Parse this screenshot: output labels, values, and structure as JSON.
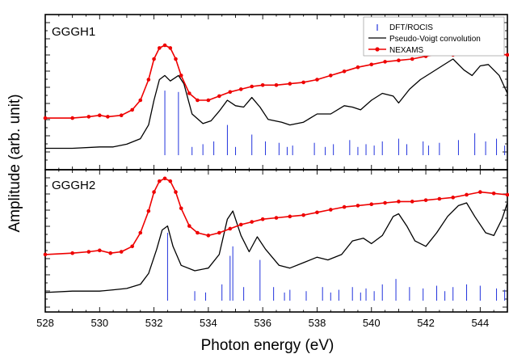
{
  "chart_data": {
    "type": "line",
    "xlabel": "Photon energy (eV)",
    "ylabel": "Amplitude (arb. unit)",
    "xlim": [
      528,
      545
    ],
    "x_ticks": [
      528,
      530,
      532,
      534,
      536,
      538,
      540,
      542,
      544
    ],
    "x_tick_labels": [
      "528",
      "530",
      "532",
      "534",
      "536",
      "538",
      "540",
      "542",
      "544"
    ],
    "legend": {
      "placement": "top-right",
      "entries": [
        "DFT/ROCIS",
        "Pseudo-Voigt convolution",
        "NEXAMS"
      ]
    },
    "colors": {
      "dft": "#2233dd",
      "convolution": "#000000",
      "nexams": "#ee0000"
    },
    "panels": [
      {
        "label": "GGGH1",
        "nexams": [
          [
            528.0,
            0.27
          ],
          [
            529.0,
            0.27
          ],
          [
            529.6,
            0.28
          ],
          [
            530.0,
            0.29
          ],
          [
            530.3,
            0.28
          ],
          [
            530.8,
            0.29
          ],
          [
            531.2,
            0.33
          ],
          [
            531.5,
            0.4
          ],
          [
            531.8,
            0.55
          ],
          [
            532.0,
            0.7
          ],
          [
            532.2,
            0.78
          ],
          [
            532.4,
            0.8
          ],
          [
            532.6,
            0.78
          ],
          [
            532.8,
            0.7
          ],
          [
            533.0,
            0.58
          ],
          [
            533.3,
            0.45
          ],
          [
            533.6,
            0.4
          ],
          [
            534.0,
            0.4
          ],
          [
            534.4,
            0.43
          ],
          [
            534.8,
            0.46
          ],
          [
            535.2,
            0.48
          ],
          [
            535.6,
            0.5
          ],
          [
            536.0,
            0.51
          ],
          [
            536.5,
            0.51
          ],
          [
            537.0,
            0.52
          ],
          [
            537.5,
            0.53
          ],
          [
            538.0,
            0.55
          ],
          [
            538.5,
            0.58
          ],
          [
            539.0,
            0.61
          ],
          [
            539.5,
            0.64
          ],
          [
            540.0,
            0.66
          ],
          [
            540.5,
            0.68
          ],
          [
            541.0,
            0.69
          ],
          [
            541.5,
            0.7
          ],
          [
            542.0,
            0.72
          ],
          [
            542.5,
            0.74
          ],
          [
            543.0,
            0.73
          ],
          [
            543.5,
            0.74
          ],
          [
            544.0,
            0.75
          ],
          [
            544.5,
            0.74
          ],
          [
            545.0,
            0.73
          ]
        ],
        "convolution": [
          [
            528.0,
            0.05
          ],
          [
            529.0,
            0.05
          ],
          [
            530.0,
            0.06
          ],
          [
            530.5,
            0.06
          ],
          [
            531.0,
            0.08
          ],
          [
            531.5,
            0.12
          ],
          [
            531.8,
            0.22
          ],
          [
            532.0,
            0.4
          ],
          [
            532.2,
            0.55
          ],
          [
            532.4,
            0.58
          ],
          [
            532.6,
            0.54
          ],
          [
            532.9,
            0.58
          ],
          [
            533.1,
            0.52
          ],
          [
            533.4,
            0.3
          ],
          [
            533.8,
            0.23
          ],
          [
            534.1,
            0.25
          ],
          [
            534.4,
            0.32
          ],
          [
            534.7,
            0.4
          ],
          [
            535.0,
            0.36
          ],
          [
            535.3,
            0.35
          ],
          [
            535.6,
            0.42
          ],
          [
            535.9,
            0.35
          ],
          [
            536.2,
            0.26
          ],
          [
            536.7,
            0.24
          ],
          [
            537.0,
            0.22
          ],
          [
            537.5,
            0.24
          ],
          [
            538.0,
            0.3
          ],
          [
            538.5,
            0.3
          ],
          [
            539.0,
            0.36
          ],
          [
            539.3,
            0.35
          ],
          [
            539.6,
            0.33
          ],
          [
            540.0,
            0.4
          ],
          [
            540.4,
            0.45
          ],
          [
            540.8,
            0.43
          ],
          [
            541.0,
            0.38
          ],
          [
            541.4,
            0.48
          ],
          [
            541.8,
            0.55
          ],
          [
            542.2,
            0.6
          ],
          [
            542.6,
            0.65
          ],
          [
            543.0,
            0.7
          ],
          [
            543.4,
            0.62
          ],
          [
            543.7,
            0.58
          ],
          [
            544.0,
            0.65
          ],
          [
            544.3,
            0.66
          ],
          [
            544.7,
            0.58
          ],
          [
            545.0,
            0.45
          ]
        ],
        "dft": [
          [
            532.4,
            0.47
          ],
          [
            532.9,
            0.46
          ],
          [
            534.7,
            0.22
          ],
          [
            535.6,
            0.15
          ],
          [
            536.1,
            0.1
          ],
          [
            533.8,
            0.08
          ],
          [
            534.2,
            0.1
          ],
          [
            536.6,
            0.09
          ],
          [
            537.1,
            0.07
          ],
          [
            537.9,
            0.09
          ],
          [
            538.6,
            0.08
          ],
          [
            539.2,
            0.11
          ],
          [
            539.8,
            0.08
          ],
          [
            540.4,
            0.1
          ],
          [
            541.0,
            0.12
          ],
          [
            541.3,
            0.08
          ],
          [
            541.9,
            0.1
          ],
          [
            542.5,
            0.09
          ],
          [
            543.2,
            0.11
          ],
          [
            543.8,
            0.16
          ],
          [
            544.2,
            0.1
          ],
          [
            544.6,
            0.12
          ],
          [
            533.4,
            0.06
          ],
          [
            536.9,
            0.06
          ],
          [
            538.3,
            0.06
          ],
          [
            540.1,
            0.07
          ],
          [
            542.1,
            0.07
          ],
          [
            544.9,
            0.07
          ],
          [
            535.0,
            0.06
          ],
          [
            539.5,
            0.06
          ]
        ]
      },
      {
        "label": "GGGH2",
        "nexams": [
          [
            528.0,
            0.34
          ],
          [
            529.0,
            0.35
          ],
          [
            529.6,
            0.36
          ],
          [
            530.0,
            0.37
          ],
          [
            530.4,
            0.35
          ],
          [
            530.8,
            0.36
          ],
          [
            531.2,
            0.4
          ],
          [
            531.5,
            0.5
          ],
          [
            531.8,
            0.66
          ],
          [
            532.0,
            0.8
          ],
          [
            532.2,
            0.88
          ],
          [
            532.4,
            0.9
          ],
          [
            532.6,
            0.88
          ],
          [
            532.8,
            0.8
          ],
          [
            533.0,
            0.68
          ],
          [
            533.3,
            0.55
          ],
          [
            533.6,
            0.5
          ],
          [
            534.0,
            0.48
          ],
          [
            534.4,
            0.5
          ],
          [
            534.8,
            0.53
          ],
          [
            535.2,
            0.56
          ],
          [
            535.6,
            0.58
          ],
          [
            536.0,
            0.6
          ],
          [
            536.5,
            0.61
          ],
          [
            537.0,
            0.62
          ],
          [
            537.5,
            0.63
          ],
          [
            538.0,
            0.65
          ],
          [
            538.5,
            0.67
          ],
          [
            539.0,
            0.69
          ],
          [
            539.5,
            0.7
          ],
          [
            540.0,
            0.71
          ],
          [
            540.5,
            0.72
          ],
          [
            541.0,
            0.73
          ],
          [
            541.5,
            0.73
          ],
          [
            542.0,
            0.74
          ],
          [
            542.5,
            0.75
          ],
          [
            543.0,
            0.76
          ],
          [
            543.5,
            0.78
          ],
          [
            544.0,
            0.8
          ],
          [
            544.5,
            0.79
          ],
          [
            545.0,
            0.78
          ]
        ],
        "convolution": [
          [
            528.0,
            0.06
          ],
          [
            529.0,
            0.07
          ],
          [
            530.0,
            0.07
          ],
          [
            530.5,
            0.08
          ],
          [
            531.0,
            0.09
          ],
          [
            531.5,
            0.12
          ],
          [
            531.8,
            0.2
          ],
          [
            532.1,
            0.38
          ],
          [
            532.3,
            0.52
          ],
          [
            532.5,
            0.55
          ],
          [
            532.7,
            0.4
          ],
          [
            533.0,
            0.26
          ],
          [
            533.5,
            0.22
          ],
          [
            534.0,
            0.24
          ],
          [
            534.4,
            0.34
          ],
          [
            534.7,
            0.6
          ],
          [
            534.9,
            0.66
          ],
          [
            535.2,
            0.48
          ],
          [
            535.5,
            0.36
          ],
          [
            535.8,
            0.47
          ],
          [
            536.1,
            0.38
          ],
          [
            536.6,
            0.26
          ],
          [
            537.0,
            0.24
          ],
          [
            537.5,
            0.28
          ],
          [
            538.0,
            0.32
          ],
          [
            538.4,
            0.3
          ],
          [
            538.9,
            0.34
          ],
          [
            539.3,
            0.44
          ],
          [
            539.7,
            0.46
          ],
          [
            540.0,
            0.42
          ],
          [
            540.4,
            0.48
          ],
          [
            540.8,
            0.62
          ],
          [
            541.0,
            0.64
          ],
          [
            541.3,
            0.55
          ],
          [
            541.6,
            0.44
          ],
          [
            542.0,
            0.4
          ],
          [
            542.4,
            0.5
          ],
          [
            542.8,
            0.62
          ],
          [
            543.2,
            0.7
          ],
          [
            543.5,
            0.72
          ],
          [
            543.8,
            0.62
          ],
          [
            544.2,
            0.5
          ],
          [
            544.5,
            0.48
          ],
          [
            544.8,
            0.6
          ],
          [
            545.0,
            0.72
          ]
        ],
        "dft": [
          [
            532.5,
            0.5
          ],
          [
            534.8,
            0.33
          ],
          [
            534.9,
            0.4
          ],
          [
            535.9,
            0.3
          ],
          [
            534.5,
            0.12
          ],
          [
            535.3,
            0.1
          ],
          [
            533.5,
            0.07
          ],
          [
            536.4,
            0.1
          ],
          [
            537.0,
            0.08
          ],
          [
            537.6,
            0.07
          ],
          [
            538.2,
            0.1
          ],
          [
            538.8,
            0.08
          ],
          [
            539.3,
            0.1
          ],
          [
            539.8,
            0.09
          ],
          [
            540.4,
            0.12
          ],
          [
            540.9,
            0.16
          ],
          [
            541.4,
            0.1
          ],
          [
            541.9,
            0.09
          ],
          [
            542.4,
            0.11
          ],
          [
            543.0,
            0.1
          ],
          [
            543.5,
            0.12
          ],
          [
            544.0,
            0.11
          ],
          [
            544.6,
            0.09
          ],
          [
            533.9,
            0.06
          ],
          [
            536.8,
            0.06
          ],
          [
            538.5,
            0.06
          ],
          [
            540.1,
            0.07
          ],
          [
            542.7,
            0.07
          ],
          [
            544.9,
            0.08
          ],
          [
            539.6,
            0.06
          ]
        ]
      }
    ]
  }
}
